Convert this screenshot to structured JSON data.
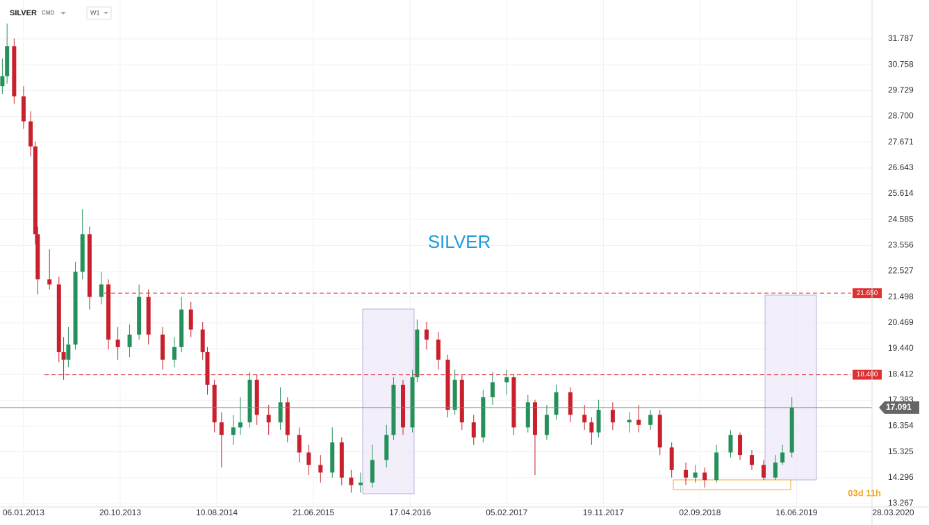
{
  "toolbar": {
    "symbol": "SILVER",
    "market": "CMD",
    "interval": "W1"
  },
  "chart_data": {
    "type": "candlestick",
    "title": "SILVER",
    "x": [
      -9,
      -7,
      -4,
      0,
      3,
      5,
      6,
      11,
      15,
      17,
      19,
      22,
      25,
      28,
      33,
      36,
      40,
      45,
      49,
      53,
      59,
      64,
      67,
      71,
      76,
      78,
      81,
      84,
      89,
      92,
      96,
      99,
      104,
      109,
      112,
      117,
      121,
      126,
      131,
      135,
      139,
      143,
      148,
      154,
      157,
      161,
      165,
      167,
      171,
      176,
      180,
      183,
      186,
      191,
      195,
      199,
      205,
      208,
      214,
      217,
      222,
      226,
      232,
      238,
      241,
      244,
      250,
      257,
      261,
      266,
      270,
      275,
      281,
      285,
      289,
      294,
      300,
      304,
      309,
      314,
      319,
      322,
      326
    ],
    "open": [
      29.9,
      30.3,
      31.5,
      29.5,
      28.5,
      27.5,
      24.0,
      22.2,
      22.0,
      19.3,
      19.0,
      19.6,
      22.5,
      24.0,
      21.5,
      22.0,
      19.8,
      19.5,
      20.0,
      21.5,
      20.0,
      19.0,
      19.5,
      21.0,
      20.2,
      19.3,
      18.0,
      16.5,
      16.0,
      16.3,
      16.5,
      18.2,
      16.8,
      16.5,
      17.3,
      16.0,
      15.3,
      14.8,
      14.5,
      15.7,
      14.3,
      14.0,
      14.1,
      15.0,
      16.0,
      18.0,
      16.3,
      18.3,
      20.2,
      19.8,
      19.0,
      17.0,
      18.2,
      16.5,
      15.9,
      17.5,
      18.1,
      18.3,
      16.3,
      17.3,
      16.0,
      16.8,
      17.7,
      16.8,
      16.5,
      16.1,
      17.0,
      16.5,
      16.6,
      16.4,
      16.8,
      15.5,
      14.6,
      14.3,
      14.5,
      14.2,
      15.3,
      16.0,
      15.2,
      14.8,
      14.3,
      14.9,
      15.3
    ],
    "high": [
      31.0,
      32.4,
      31.8,
      29.9,
      28.9,
      27.7,
      24.3,
      23.4,
      22.3,
      19.9,
      20.3,
      22.9,
      25.0,
      24.3,
      22.5,
      22.2,
      20.3,
      20.4,
      22.0,
      21.8,
      20.3,
      19.9,
      21.5,
      21.3,
      20.5,
      19.5,
      18.2,
      16.9,
      16.8,
      17.5,
      18.5,
      18.4,
      17.2,
      17.9,
      17.5,
      16.3,
      15.6,
      15.2,
      16.3,
      15.9,
      14.6,
      14.5,
      15.6,
      16.4,
      18.3,
      18.2,
      18.6,
      20.6,
      20.5,
      20.1,
      19.2,
      18.6,
      18.4,
      16.8,
      17.8,
      18.5,
      18.6,
      18.4,
      17.6,
      17.4,
      17.2,
      18.0,
      17.9,
      17.2,
      16.7,
      17.4,
      17.3,
      16.9,
      17.2,
      17.0,
      17.0,
      15.7,
      14.9,
      14.8,
      14.7,
      15.6,
      16.2,
      16.1,
      15.4,
      15.0,
      15.2,
      15.6,
      17.5
    ],
    "low": [
      29.6,
      30.0,
      29.2,
      28.2,
      27.1,
      23.6,
      21.6,
      21.8,
      18.9,
      18.2,
      18.7,
      19.4,
      22.2,
      21.0,
      21.2,
      19.4,
      19.0,
      19.1,
      19.8,
      19.6,
      18.6,
      18.7,
      19.3,
      19.9,
      19.0,
      17.6,
      16.1,
      14.7,
      15.6,
      16.0,
      16.3,
      16.4,
      16.0,
      16.2,
      15.7,
      14.9,
      14.4,
      14.1,
      14.3,
      14.0,
      13.7,
      13.7,
      13.9,
      14.7,
      15.8,
      16.0,
      16.1,
      18.1,
      19.4,
      18.6,
      16.7,
      16.8,
      16.2,
      15.6,
      15.7,
      17.2,
      17.6,
      16.0,
      16.1,
      14.4,
      15.8,
      16.6,
      16.5,
      16.2,
      15.6,
      15.9,
      16.2,
      16.1,
      16.1,
      16.2,
      15.2,
      14.3,
      14.0,
      14.1,
      13.9,
      14.1,
      15.1,
      15.0,
      14.6,
      14.2,
      14.2,
      14.8,
      15.1
    ],
    "close": [
      30.3,
      31.5,
      29.5,
      28.5,
      27.5,
      24.0,
      22.2,
      22.0,
      19.3,
      19.0,
      19.6,
      22.5,
      24.0,
      21.5,
      22.0,
      19.8,
      19.5,
      20.0,
      21.5,
      20.0,
      19.0,
      19.5,
      21.0,
      20.2,
      19.3,
      18.0,
      16.5,
      16.0,
      16.3,
      16.5,
      18.2,
      16.8,
      16.5,
      17.3,
      16.0,
      15.3,
      14.8,
      14.5,
      15.7,
      14.3,
      14.0,
      14.1,
      15.0,
      16.0,
      18.0,
      16.3,
      18.3,
      20.2,
      19.8,
      19.0,
      17.0,
      18.2,
      16.5,
      15.9,
      17.5,
      18.1,
      18.3,
      16.3,
      17.3,
      16.0,
      16.8,
      17.7,
      16.8,
      16.5,
      16.1,
      17.0,
      16.5,
      16.6,
      16.4,
      16.8,
      15.5,
      14.6,
      14.3,
      14.5,
      14.2,
      15.3,
      16.0,
      15.2,
      14.8,
      14.3,
      14.9,
      15.3,
      17.1
    ],
    "up_color": "#26905a",
    "down_color": "#c8202c",
    "xlim": [
      -10,
      360
    ],
    "xticks": [
      {
        "value": 0,
        "label": "06.01.2013"
      },
      {
        "value": 41,
        "label": "20.10.2013"
      },
      {
        "value": 82,
        "label": "10.08.2014"
      },
      {
        "value": 123,
        "label": "21.06.2015"
      },
      {
        "value": 164,
        "label": "17.04.2016"
      },
      {
        "value": 205,
        "label": "05.02.2017"
      },
      {
        "value": 246,
        "label": "19.11.2017"
      },
      {
        "value": 287,
        "label": "02.09.2018"
      },
      {
        "value": 328,
        "label": "16.06.2019"
      },
      {
        "value": 369,
        "label": "28.03.2020"
      }
    ],
    "ylim": [
      13.267,
      31.787
    ],
    "yticks": [
      13.267,
      14.296,
      15.325,
      16.354,
      17.383,
      18.412,
      {
        "value": 19.44,
        "label": "19.440"
      },
      20.469,
      21.498,
      22.527,
      23.556,
      24.585,
      25.614,
      26.643,
      27.671,
      {
        "value": 28.7,
        "label": "28.700"
      },
      29.729,
      30.758,
      31.787
    ],
    "grid": true,
    "levels": [
      {
        "value": 21.65,
        "label": "21.650"
      },
      {
        "value": 18.4,
        "label": "18.400"
      }
    ],
    "level_color": "#e03030",
    "last_price": {
      "value": 17.091,
      "label": "17.091"
    },
    "timer": "03d 11h"
  }
}
